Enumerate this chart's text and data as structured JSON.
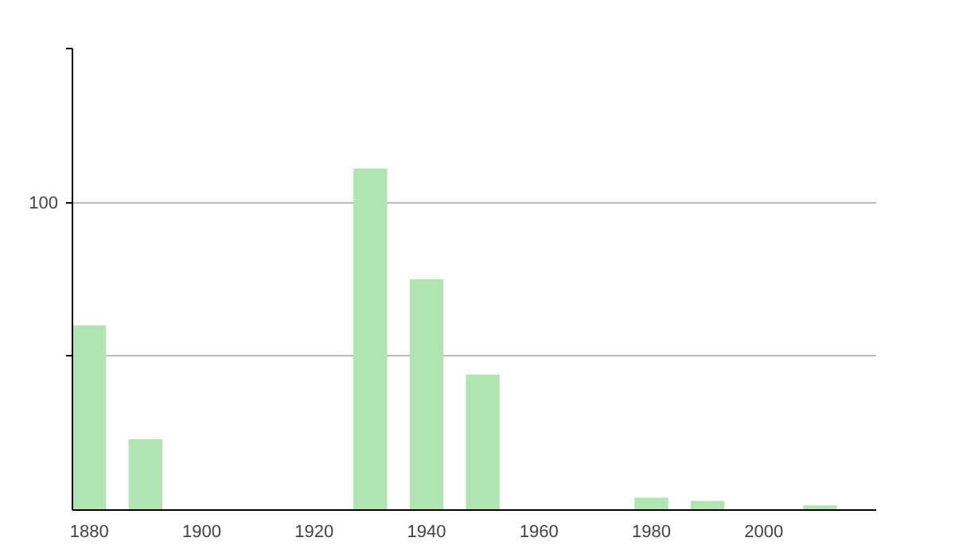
{
  "chart_data": {
    "type": "bar",
    "x": [
      1880,
      1890,
      1930,
      1940,
      1950,
      1980,
      1990,
      2010
    ],
    "values": [
      60,
      23,
      111,
      75,
      44,
      4,
      3,
      1.5
    ],
    "color": "#b0e4b0",
    "xlim": [
      1877,
      2020
    ],
    "xticks": [
      1880,
      1900,
      1920,
      1940,
      1960,
      1980,
      2000
    ],
    "ylim": [
      0,
      150
    ],
    "yticks": [
      {
        "value": 50,
        "label": null
      },
      100,
      {
        "value": 150,
        "label": null
      }
    ],
    "grid": "y"
  }
}
